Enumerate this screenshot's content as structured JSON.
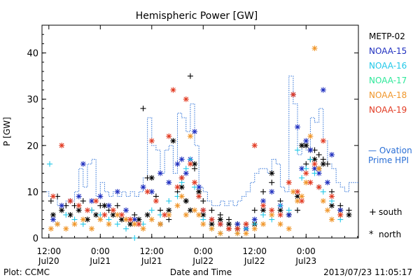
{
  "chart_data": {
    "type": "scatter",
    "title": "Hemispheric Power [GW]",
    "ylabel": "P [GW]",
    "xlabel": "Date and Time",
    "ylim": [
      0,
      46
    ],
    "y_ticks": [
      0,
      10,
      20,
      30,
      40
    ],
    "x_ticks": [
      {
        "hour": 12,
        "line1": "12:00",
        "line2": "Jul20"
      },
      {
        "hour": 24,
        "line1": "0:00",
        "line2": "Jul21"
      },
      {
        "hour": 36,
        "line1": "12:00",
        "line2": "Jul21"
      },
      {
        "hour": 48,
        "line1": "0:00",
        "line2": "Jul22"
      },
      {
        "hour": 60,
        "line1": "12:00",
        "line2": "Jul22"
      },
      {
        "hour": 72,
        "line1": "0:00",
        "line2": "Jul23"
      }
    ],
    "xlim_hours": [
      10.4,
      84.2
    ],
    "grid": false,
    "footer_left": "Plot: CCMC",
    "footer_right": "2013/07/23 11:05:17",
    "legend_right": [
      {
        "name": "METP-02",
        "color": "#000000"
      },
      {
        "name": "NOAA-15",
        "color": "#1f2fbf"
      },
      {
        "name": "NOAA-16",
        "color": "#22c8e8"
      },
      {
        "name": "NOAA-17",
        "color": "#2ee89a"
      },
      {
        "name": "NOAA-18",
        "color": "#f0962a"
      },
      {
        "name": "NOAA-19",
        "color": "#e23a22"
      }
    ],
    "ovation_label_line1": "— Ovation",
    "ovation_label_line2": "Prime HPI",
    "ovation_color": "#2a6fd6",
    "marker_legend": [
      {
        "symbol": "+",
        "label": "south"
      },
      {
        "symbol": "*",
        "label": "north"
      }
    ],
    "ovation_hpi": [
      [
        10.4,
        10
      ],
      [
        12,
        9
      ],
      [
        14,
        7
      ],
      [
        16,
        8
      ],
      [
        18,
        10
      ],
      [
        19,
        15
      ],
      [
        20,
        11
      ],
      [
        21,
        16
      ],
      [
        22,
        17
      ],
      [
        23,
        9
      ],
      [
        24,
        12
      ],
      [
        25,
        10
      ],
      [
        26,
        9
      ],
      [
        27,
        10
      ],
      [
        28,
        9
      ],
      [
        29,
        10
      ],
      [
        30,
        9
      ],
      [
        31,
        10
      ],
      [
        32,
        9
      ],
      [
        33,
        10
      ],
      [
        34,
        13
      ],
      [
        35,
        26
      ],
      [
        36,
        20
      ],
      [
        37,
        19
      ],
      [
        38,
        14
      ],
      [
        39,
        19
      ],
      [
        40,
        20
      ],
      [
        41,
        14
      ],
      [
        42,
        27
      ],
      [
        43,
        26
      ],
      [
        44,
        23
      ],
      [
        45,
        29
      ],
      [
        46,
        20
      ],
      [
        47,
        11
      ],
      [
        48,
        10
      ],
      [
        49,
        8
      ],
      [
        50,
        7
      ],
      [
        51,
        7
      ],
      [
        52,
        8
      ],
      [
        53,
        7
      ],
      [
        54,
        8
      ],
      [
        55,
        7
      ],
      [
        56,
        8
      ],
      [
        57,
        9
      ],
      [
        58,
        10
      ],
      [
        59,
        12
      ],
      [
        60,
        14
      ],
      [
        61,
        15
      ],
      [
        62,
        15
      ],
      [
        63,
        14
      ],
      [
        64,
        17
      ],
      [
        65,
        16
      ],
      [
        66,
        11
      ],
      [
        67,
        10
      ],
      [
        68,
        35
      ],
      [
        69,
        29
      ],
      [
        70,
        18
      ],
      [
        71,
        20
      ],
      [
        72,
        19
      ],
      [
        73,
        26
      ],
      [
        74,
        25
      ],
      [
        75,
        28
      ],
      [
        76,
        21
      ],
      [
        77,
        16
      ],
      [
        78,
        15
      ],
      [
        79,
        12
      ],
      [
        80,
        11
      ],
      [
        81,
        10
      ],
      [
        82,
        12
      ],
      [
        84.2,
        12
      ]
    ],
    "series": [
      {
        "name": "METP-02",
        "marker": "+",
        "points": [
          [
            12.5,
            8
          ],
          [
            14,
            9
          ],
          [
            16,
            7
          ],
          [
            18,
            7
          ],
          [
            20,
            8
          ],
          [
            22,
            6
          ],
          [
            24,
            7
          ],
          [
            26,
            6
          ],
          [
            28,
            7
          ],
          [
            30,
            4
          ],
          [
            32,
            5
          ],
          [
            34,
            28
          ],
          [
            35,
            13
          ],
          [
            37,
            9
          ],
          [
            38,
            6
          ],
          [
            40,
            4
          ],
          [
            42,
            10
          ],
          [
            43,
            13
          ],
          [
            44,
            8
          ],
          [
            45,
            35
          ],
          [
            46,
            15
          ],
          [
            47,
            10
          ],
          [
            48,
            8
          ],
          [
            50,
            6
          ],
          [
            52,
            5
          ],
          [
            54,
            4
          ],
          [
            56,
            3
          ],
          [
            58,
            3
          ],
          [
            60,
            6
          ],
          [
            62,
            10
          ],
          [
            64,
            12
          ],
          [
            66,
            8
          ],
          [
            68,
            5
          ],
          [
            70,
            6
          ],
          [
            72,
            16
          ],
          [
            73,
            17
          ],
          [
            74,
            19
          ],
          [
            75,
            18
          ],
          [
            76,
            17
          ],
          [
            77,
            16
          ],
          [
            78,
            10
          ],
          [
            80,
            7
          ],
          [
            82,
            6
          ]
        ]
      },
      {
        "name": "METP-02",
        "marker": "*",
        "points": [
          [
            13,
            5
          ],
          [
            15,
            6
          ],
          [
            17,
            5
          ],
          [
            19,
            6
          ],
          [
            21,
            4
          ],
          [
            23,
            5
          ],
          [
            25,
            7
          ],
          [
            27,
            5
          ],
          [
            29,
            4
          ],
          [
            31,
            3
          ],
          [
            33,
            4
          ],
          [
            35,
            5
          ],
          [
            36,
            13
          ],
          [
            38,
            3
          ],
          [
            40,
            6
          ],
          [
            41,
            21
          ],
          [
            43,
            11
          ],
          [
            44,
            8
          ],
          [
            45,
            6
          ],
          [
            46,
            16
          ],
          [
            47,
            10
          ],
          [
            48,
            5
          ],
          [
            50,
            3
          ],
          [
            52,
            4
          ],
          [
            54,
            3
          ],
          [
            56,
            2
          ],
          [
            58,
            2
          ],
          [
            60,
            3
          ],
          [
            62,
            6
          ],
          [
            64,
            14
          ],
          [
            66,
            6
          ],
          [
            68,
            5
          ],
          [
            70,
            9
          ],
          [
            71,
            20
          ],
          [
            72,
            20
          ],
          [
            73,
            19
          ],
          [
            74,
            17
          ],
          [
            75,
            15
          ],
          [
            76,
            16
          ],
          [
            78,
            7
          ],
          [
            80,
            6
          ],
          [
            82,
            5
          ]
        ]
      },
      {
        "name": "NOAA-15",
        "marker": "*",
        "points": [
          [
            13,
            4
          ],
          [
            15,
            7
          ],
          [
            17,
            8
          ],
          [
            19,
            9
          ],
          [
            20,
            16
          ],
          [
            22,
            8
          ],
          [
            24,
            9
          ],
          [
            26,
            7
          ],
          [
            28,
            10
          ],
          [
            30,
            6
          ],
          [
            32,
            4
          ],
          [
            34,
            11
          ],
          [
            36,
            10
          ],
          [
            38,
            14
          ],
          [
            40,
            12
          ],
          [
            42,
            16
          ],
          [
            43,
            17
          ],
          [
            44,
            14
          ],
          [
            45,
            17
          ],
          [
            46,
            23
          ],
          [
            47,
            11
          ],
          [
            48,
            6
          ],
          [
            50,
            4
          ],
          [
            52,
            3
          ],
          [
            54,
            2
          ],
          [
            56,
            3
          ],
          [
            58,
            2
          ],
          [
            60,
            4
          ],
          [
            62,
            8
          ],
          [
            64,
            10
          ],
          [
            66,
            7
          ],
          [
            68,
            5
          ],
          [
            69,
            31
          ],
          [
            70,
            24
          ],
          [
            71,
            15
          ],
          [
            72,
            21
          ],
          [
            73,
            19
          ],
          [
            74,
            15
          ],
          [
            75,
            14
          ],
          [
            76,
            32
          ],
          [
            77,
            12
          ],
          [
            78,
            18
          ],
          [
            80,
            6
          ]
        ]
      },
      {
        "name": "NOAA-16",
        "marker": "+",
        "points": [
          [
            12.2,
            16
          ],
          [
            14,
            3
          ],
          [
            16,
            5
          ],
          [
            18,
            4
          ],
          [
            20,
            3
          ],
          [
            22,
            6
          ],
          [
            24,
            5
          ],
          [
            26,
            4
          ],
          [
            28,
            3
          ],
          [
            30,
            2
          ],
          [
            32,
            0
          ],
          [
            34,
            3
          ],
          [
            36,
            6
          ],
          [
            38,
            5
          ],
          [
            40,
            8
          ],
          [
            42,
            9
          ],
          [
            43,
            12
          ],
          [
            44,
            15
          ],
          [
            45,
            17
          ],
          [
            46,
            11
          ],
          [
            47,
            9
          ],
          [
            48,
            4
          ],
          [
            50,
            2
          ],
          [
            52,
            1
          ],
          [
            54,
            2
          ],
          [
            56,
            1
          ],
          [
            58,
            2
          ],
          [
            60,
            3
          ],
          [
            62,
            5
          ],
          [
            64,
            4
          ],
          [
            66,
            7
          ],
          [
            68,
            6
          ],
          [
            70,
            19
          ],
          [
            71,
            13
          ],
          [
            72,
            15
          ],
          [
            73,
            17
          ],
          [
            74,
            14
          ],
          [
            75,
            11
          ],
          [
            76,
            10
          ],
          [
            78,
            8
          ],
          [
            80,
            4
          ]
        ]
      },
      {
        "name": "NOAA-17",
        "marker": "+",
        "points": []
      },
      {
        "name": "NOAA-18",
        "marker": "*",
        "points": [
          [
            12.5,
            2
          ],
          [
            14,
            3
          ],
          [
            16,
            2
          ],
          [
            18,
            3
          ],
          [
            20,
            4
          ],
          [
            22,
            2
          ],
          [
            24,
            4
          ],
          [
            26,
            3
          ],
          [
            28,
            5
          ],
          [
            30,
            4
          ],
          [
            32,
            3
          ],
          [
            34,
            2
          ],
          [
            36,
            4
          ],
          [
            38,
            3
          ],
          [
            40,
            5
          ],
          [
            42,
            7
          ],
          [
            43,
            9
          ],
          [
            44,
            5
          ],
          [
            45,
            22
          ],
          [
            46,
            6
          ],
          [
            47,
            5
          ],
          [
            48,
            3
          ],
          [
            50,
            2
          ],
          [
            52,
            1
          ],
          [
            54,
            2
          ],
          [
            56,
            1
          ],
          [
            58,
            1
          ],
          [
            60,
            2
          ],
          [
            62,
            3
          ],
          [
            64,
            5
          ],
          [
            66,
            3
          ],
          [
            68,
            2
          ],
          [
            69,
            10
          ],
          [
            70,
            8
          ],
          [
            71,
            9
          ],
          [
            72,
            12
          ],
          [
            73,
            22
          ],
          [
            74,
            41
          ],
          [
            75,
            15
          ],
          [
            76,
            8
          ],
          [
            77,
            6
          ],
          [
            78,
            4
          ],
          [
            80,
            5
          ]
        ]
      },
      {
        "name": "NOAA-19",
        "marker": "*",
        "points": [
          [
            13,
            9
          ],
          [
            15,
            20
          ],
          [
            17,
            8
          ],
          [
            19,
            7
          ],
          [
            21,
            6
          ],
          [
            23,
            8
          ],
          [
            25,
            5
          ],
          [
            27,
            6
          ],
          [
            29,
            5
          ],
          [
            31,
            4
          ],
          [
            33,
            3
          ],
          [
            35,
            10
          ],
          [
            36,
            21
          ],
          [
            37,
            8
          ],
          [
            39,
            5
          ],
          [
            40,
            22
          ],
          [
            41,
            32
          ],
          [
            42,
            11
          ],
          [
            43,
            13
          ],
          [
            44,
            30
          ],
          [
            45,
            16
          ],
          [
            46,
            12
          ],
          [
            47,
            9
          ],
          [
            48,
            6
          ],
          [
            50,
            4
          ],
          [
            52,
            3
          ],
          [
            54,
            2
          ],
          [
            56,
            2
          ],
          [
            58,
            3
          ],
          [
            60,
            20
          ],
          [
            62,
            7
          ],
          [
            64,
            6
          ],
          [
            66,
            5
          ],
          [
            68,
            12
          ],
          [
            69,
            31
          ],
          [
            70,
            10
          ],
          [
            71,
            8
          ],
          [
            72,
            14
          ],
          [
            73,
            12
          ],
          [
            74,
            16
          ],
          [
            75,
            11
          ],
          [
            76,
            21
          ],
          [
            78,
            9
          ],
          [
            80,
            5
          ]
        ]
      }
    ]
  }
}
